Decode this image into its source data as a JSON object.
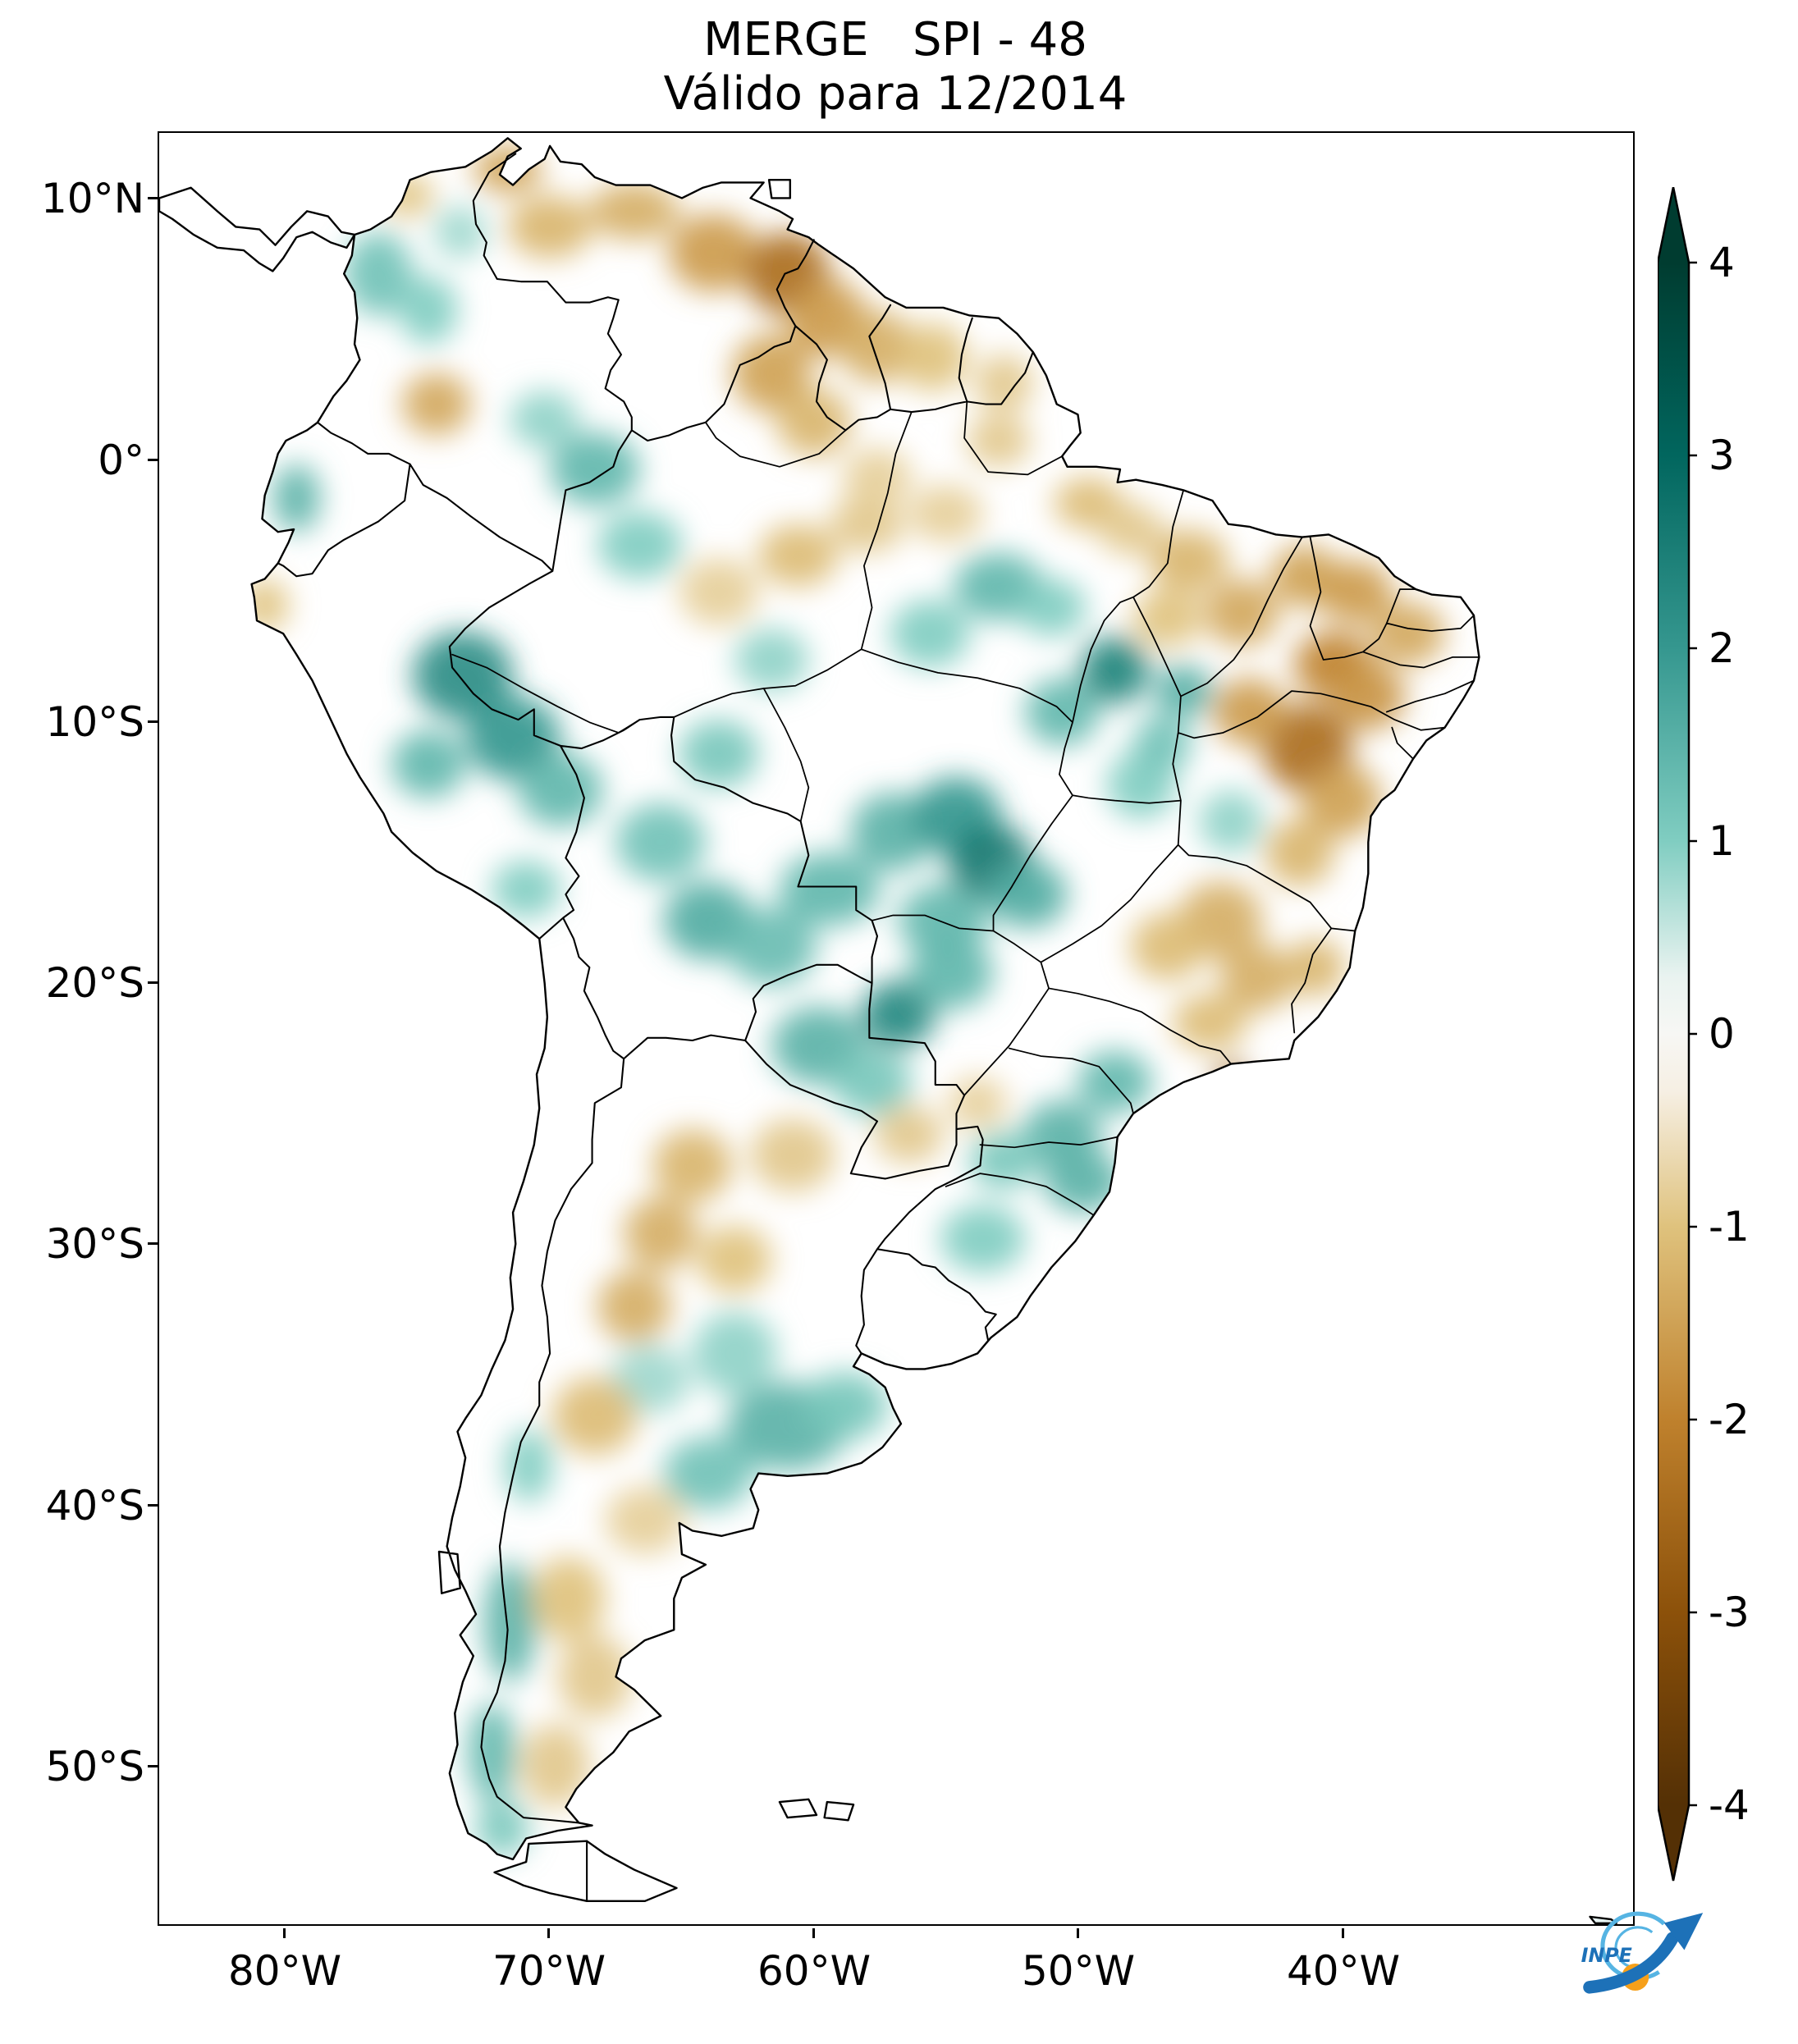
{
  "title": {
    "line1": "MERGE   SPI - 48",
    "line2": "Válido para 12/2014"
  },
  "axes": {
    "y_ticks": [
      "10°N",
      "0°",
      "10°S",
      "20°S",
      "30°S",
      "40°S",
      "50°S"
    ],
    "x_ticks": [
      "80°W",
      "70°W",
      "60°W",
      "50°W",
      "40°W"
    ]
  },
  "colorbar": {
    "tick_labels": [
      "4",
      "3",
      "2",
      "1",
      "0",
      "-1",
      "-2",
      "-3",
      "-4"
    ],
    "max_color": "#003c30",
    "min_color": "#543005"
  },
  "logo": {
    "text": "INPE",
    "dark_blue": "#1d71b8",
    "light_blue": "#56b4e3",
    "orange": "#f6a01a"
  },
  "chart_data": {
    "type": "heatmap",
    "title": "MERGE   SPI - 48",
    "subtitle": "Válido para 12/2014",
    "product": "MERGE",
    "index": "SPI-48",
    "valid_for": "12/2014",
    "region": "South America",
    "colorbar_range": [
      -4,
      4
    ],
    "colorbar_ticks": [
      4,
      3,
      2,
      1,
      0,
      -1,
      -2,
      -3,
      -4
    ],
    "colormap": [
      [
        -4,
        "#543005"
      ],
      [
        -3,
        "#8c510a"
      ],
      [
        -2,
        "#bf812d"
      ],
      [
        -1,
        "#dfc27d"
      ],
      [
        -0.3,
        "#f6efe3"
      ],
      [
        0,
        "#f7f7f4"
      ],
      [
        0.3,
        "#e9f3f0"
      ],
      [
        1,
        "#80cdc1"
      ],
      [
        2,
        "#35978f"
      ],
      [
        3,
        "#01665e"
      ],
      [
        4,
        "#003c30"
      ]
    ],
    "x_axis": {
      "tick_labels": [
        "80°W",
        "70°W",
        "60°W",
        "50°W",
        "40°W"
      ]
    },
    "y_axis": {
      "tick_labels": [
        "10°N",
        "0°",
        "10°S",
        "20°S",
        "30°S",
        "40°S",
        "50°S"
      ]
    },
    "anomalies": {
      "format": [
        "lon",
        "lat",
        "rx_deg",
        "ry_deg",
        "spi"
      ],
      "points": [
        [
          -76.5,
          7.2,
          1.3,
          1.6,
          1.2
        ],
        [
          -74.6,
          5.8,
          1.1,
          1.3,
          1.0
        ],
        [
          -73.4,
          8.8,
          1.0,
          1.0,
          0.8
        ],
        [
          -68.3,
          -0.3,
          1.7,
          1.4,
          1.4
        ],
        [
          -70.2,
          1.6,
          1.3,
          1.1,
          0.9
        ],
        [
          -66.6,
          -3.2,
          1.6,
          1.3,
          1.0
        ],
        [
          -73.3,
          -8.2,
          1.9,
          1.7,
          2.2
        ],
        [
          -71.4,
          -10.6,
          1.8,
          1.6,
          2.0
        ],
        [
          -74.6,
          -11.6,
          1.4,
          1.3,
          1.4
        ],
        [
          -69.6,
          -12.6,
          1.6,
          1.4,
          1.4
        ],
        [
          -63.6,
          -11.2,
          1.5,
          1.3,
          1.1
        ],
        [
          -65.8,
          -14.6,
          1.7,
          1.5,
          1.2
        ],
        [
          -64.0,
          -17.6,
          1.7,
          1.5,
          1.6
        ],
        [
          -61.6,
          -18.6,
          1.7,
          1.5,
          1.3
        ],
        [
          -59.4,
          -16.4,
          1.9,
          1.4,
          1.4
        ],
        [
          -57.0,
          -14.2,
          1.6,
          1.5,
          1.5
        ],
        [
          -54.6,
          -13.6,
          1.7,
          1.5,
          2.0
        ],
        [
          -53.3,
          -15.4,
          1.6,
          1.5,
          2.6
        ],
        [
          -51.9,
          -16.6,
          1.5,
          1.3,
          1.6
        ],
        [
          -55.1,
          -17.6,
          1.7,
          1.4,
          1.4
        ],
        [
          -56.8,
          -21.2,
          1.4,
          1.3,
          2.3
        ],
        [
          -54.8,
          -19.6,
          1.6,
          1.4,
          1.4
        ],
        [
          -59.8,
          -22.4,
          1.8,
          1.5,
          1.5
        ],
        [
          -57.8,
          -23.8,
          1.5,
          1.3,
          1.1
        ],
        [
          -48.6,
          -8.0,
          1.3,
          1.3,
          2.4
        ],
        [
          -50.6,
          -9.6,
          1.4,
          1.3,
          1.4
        ],
        [
          -46.0,
          -8.8,
          1.1,
          1.0,
          1.6
        ],
        [
          -53.0,
          -4.8,
          1.7,
          1.3,
          1.4
        ],
        [
          -55.6,
          -6.6,
          1.5,
          1.3,
          1.0
        ],
        [
          -51.0,
          -5.6,
          1.3,
          1.1,
          1.0
        ],
        [
          -47.6,
          -12.4,
          1.3,
          1.3,
          1.0
        ],
        [
          -44.2,
          -13.8,
          1.2,
          1.2,
          0.9
        ],
        [
          -48.6,
          -23.8,
          1.4,
          1.2,
          1.4
        ],
        [
          -50.6,
          -25.8,
          1.5,
          1.3,
          1.5
        ],
        [
          -49.8,
          -27.6,
          1.5,
          1.2,
          1.5
        ],
        [
          -52.8,
          -26.8,
          1.3,
          1.1,
          1.1
        ],
        [
          -53.6,
          -29.8,
          1.6,
          1.3,
          1.0
        ],
        [
          -61.0,
          -37.0,
          2.3,
          1.7,
          1.5
        ],
        [
          -64.0,
          -38.8,
          1.7,
          1.4,
          1.2
        ],
        [
          -58.8,
          -36.2,
          1.6,
          1.3,
          1.1
        ],
        [
          -66.2,
          -35.2,
          1.5,
          1.3,
          0.8
        ],
        [
          -71.5,
          -44.5,
          1.0,
          2.3,
          1.5
        ],
        [
          -72.2,
          -49.5,
          0.9,
          1.9,
          1.4
        ],
        [
          -71.8,
          -52.4,
          1.0,
          1.1,
          1.1
        ],
        [
          -79.6,
          -1.4,
          0.9,
          1.3,
          1.5
        ],
        [
          -70.9,
          -16.4,
          1.3,
          1.1,
          1.0
        ],
        [
          -63.0,
          -34.2,
          1.6,
          1.6,
          0.9
        ],
        [
          -70.8,
          -38.5,
          0.9,
          1.4,
          1.0
        ],
        [
          -61.6,
          -7.6,
          1.4,
          1.2,
          0.9
        ],
        [
          -46.8,
          -10.8,
          1.1,
          1.1,
          1.2
        ],
        [
          -30.1,
          -55.9,
          0.5,
          0.25,
          1.3
        ],
        [
          -71.6,
          11.2,
          1.3,
          0.9,
          -1.5
        ],
        [
          -70.0,
          9.0,
          1.6,
          1.2,
          -1.2
        ],
        [
          -66.8,
          9.6,
          1.7,
          1.1,
          -1.3
        ],
        [
          -63.8,
          8.0,
          1.7,
          1.5,
          -1.6
        ],
        [
          -61.0,
          7.2,
          1.6,
          1.6,
          -2.4
        ],
        [
          -59.5,
          5.5,
          1.5,
          1.5,
          -1.6
        ],
        [
          -61.6,
          3.4,
          1.5,
          1.5,
          -1.5
        ],
        [
          -60.0,
          1.5,
          1.4,
          1.3,
          -1.2
        ],
        [
          -57.6,
          4.4,
          1.4,
          1.4,
          -1.3
        ],
        [
          -55.5,
          4.0,
          1.3,
          1.3,
          -1.0
        ],
        [
          -52.8,
          3.0,
          1.1,
          1.1,
          -0.9
        ],
        [
          -74.3,
          2.2,
          1.3,
          1.2,
          -1.4
        ],
        [
          -60.6,
          -3.6,
          1.5,
          1.2,
          -1.1
        ],
        [
          -63.6,
          -5.0,
          1.5,
          1.3,
          -0.8
        ],
        [
          -58.0,
          -2.4,
          1.4,
          1.1,
          -0.9
        ],
        [
          -55.0,
          -2.0,
          1.4,
          1.1,
          -0.8
        ],
        [
          -49.6,
          -1.6,
          1.3,
          1.0,
          -1.1
        ],
        [
          -45.8,
          -3.8,
          1.5,
          1.2,
          -1.2
        ],
        [
          -43.8,
          -5.8,
          1.4,
          1.3,
          -1.4
        ],
        [
          -41.4,
          -4.4,
          1.3,
          1.2,
          -1.5
        ],
        [
          -39.5,
          -5.0,
          1.4,
          1.2,
          -1.6
        ],
        [
          -37.5,
          -6.6,
          1.4,
          1.2,
          -1.4
        ],
        [
          -40.3,
          -7.8,
          1.5,
          1.3,
          -2.0
        ],
        [
          -41.3,
          -11.0,
          1.7,
          1.7,
          -2.4
        ],
        [
          -43.5,
          -9.6,
          1.4,
          1.3,
          -1.6
        ],
        [
          -39.0,
          -9.0,
          1.4,
          1.3,
          -1.7
        ],
        [
          -40.0,
          -13.0,
          1.5,
          1.4,
          -1.5
        ],
        [
          -41.6,
          -15.0,
          1.3,
          1.3,
          -1.2
        ],
        [
          -44.6,
          -17.6,
          1.6,
          1.5,
          -1.3
        ],
        [
          -46.6,
          -18.6,
          1.4,
          1.3,
          -1.1
        ],
        [
          -43.2,
          -19.8,
          1.4,
          1.3,
          -1.3
        ],
        [
          -41.0,
          -19.4,
          1.1,
          1.1,
          -1.2
        ],
        [
          -45.0,
          -21.5,
          1.4,
          1.1,
          -1.1
        ],
        [
          -44.2,
          -23.6,
          0.6,
          0.55,
          -2.6
        ],
        [
          -56.4,
          -25.8,
          1.3,
          1.1,
          -0.9
        ],
        [
          -53.8,
          -24.6,
          1.1,
          1.0,
          -0.8
        ],
        [
          -60.8,
          -26.6,
          1.6,
          1.4,
          -0.9
        ],
        [
          -64.6,
          -27.0,
          1.5,
          1.4,
          -1.2
        ],
        [
          -65.8,
          -29.6,
          1.4,
          1.4,
          -1.3
        ],
        [
          -63.0,
          -30.6,
          1.4,
          1.3,
          -1.0
        ],
        [
          -66.8,
          -32.4,
          1.4,
          1.4,
          -1.3
        ],
        [
          -68.3,
          -36.6,
          1.6,
          1.5,
          -1.1
        ],
        [
          -66.4,
          -40.6,
          1.5,
          1.3,
          -0.8
        ],
        [
          -69.3,
          -43.6,
          1.4,
          1.6,
          -1.0
        ],
        [
          -68.3,
          -46.6,
          1.4,
          1.6,
          -0.9
        ],
        [
          -69.8,
          -50.0,
          1.3,
          1.6,
          -0.9
        ],
        [
          -80.8,
          -5.5,
          0.9,
          1.0,
          -1.0
        ],
        [
          -75.4,
          10.2,
          1.0,
          0.8,
          -1.0
        ],
        [
          -53.0,
          0.8,
          1.2,
          1.0,
          -0.9
        ],
        [
          -57.6,
          -0.6,
          1.3,
          1.1,
          -0.8
        ],
        [
          -46.6,
          -6.0,
          1.3,
          1.1,
          -1.0
        ],
        [
          -48.0,
          -2.6,
          1.2,
          1.0,
          -0.9
        ]
      ]
    }
  }
}
